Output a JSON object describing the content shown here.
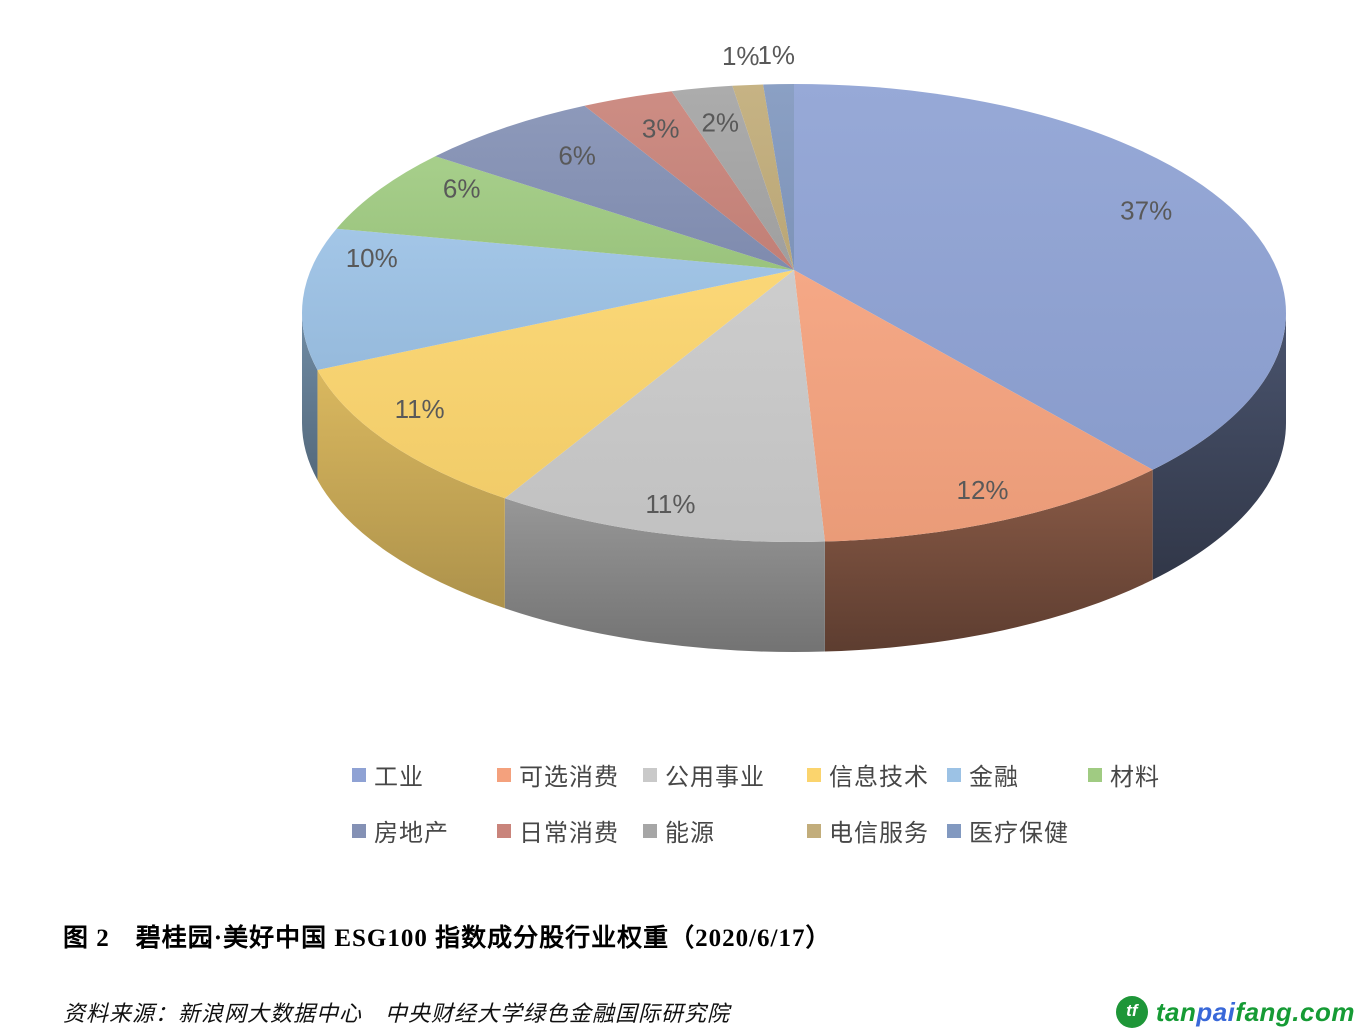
{
  "chart_data": {
    "type": "pie",
    "style": "3d",
    "unit": "percent",
    "categories": [
      "工业",
      "可选消费",
      "公用事业",
      "信息技术",
      "金融",
      "材料",
      "房地产",
      "日常消费",
      "能源",
      "电信服务",
      "医疗保健"
    ],
    "values": [
      37,
      12,
      11,
      11,
      10,
      6,
      6,
      3,
      2,
      1,
      1
    ],
    "labels": [
      "37%",
      "12%",
      "11%",
      "11%",
      "10%",
      "6%",
      "6%",
      "3%",
      "2%",
      "1%",
      "1%"
    ],
    "colors": [
      "#8FA2D4",
      "#F4A17D",
      "#C9C9C9",
      "#FBD46D",
      "#9CC2E5",
      "#A0CB82",
      "#8491B5",
      "#C9847B",
      "#A6A6A6",
      "#C2AD7B",
      "#8299C0"
    ],
    "label_color": "#595959",
    "legend_position": "bottom",
    "title": "碧桂园·美好中国 ESG100 指数成分股行业权重"
  },
  "caption": {
    "text": "图 2　碧桂园·美好中国 ESG100 指数成分股行业权重（2020/6/17）"
  },
  "source": {
    "text": "资料来源：新浪网大数据中心　中央财经大学绿色金融国际研究院"
  },
  "logo": {
    "monogram": "tf",
    "part_tan": "tan",
    "part_pai": "pai",
    "part_fang": "fang.com"
  }
}
